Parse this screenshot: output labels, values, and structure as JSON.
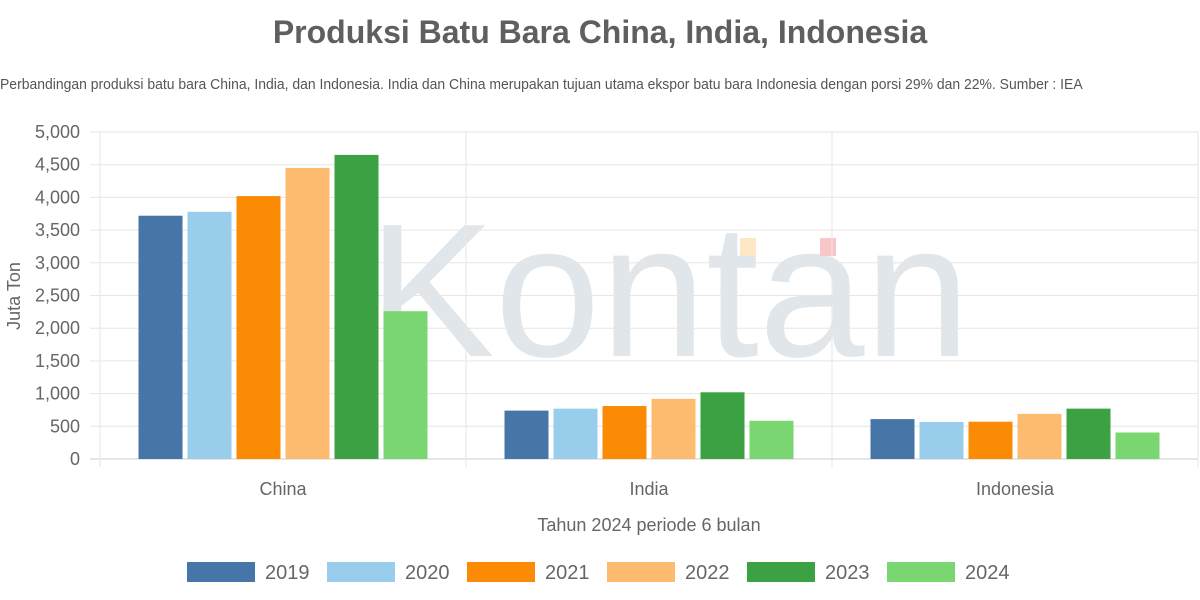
{
  "chart_data": {
    "type": "bar",
    "title": "Produksi Batu Bara China, India, Indonesia",
    "subtitle": "Perbandingan produksi batu bara China, India, dan Indonesia. India dan China merupakan tujuan utama ekspor batu bara Indonesia dengan porsi 29% dan 22%. Sumber : IEA",
    "xlabel": "Tahun 2024 periode 6 bulan",
    "ylabel": "Juta Ton",
    "ylim": [
      0,
      5000
    ],
    "yticks": [
      0,
      500,
      1000,
      1500,
      2000,
      2500,
      3000,
      3500,
      4000,
      4500,
      5000
    ],
    "ytick_labels": [
      "0",
      "500",
      "1,000",
      "1,500",
      "2,000",
      "2,500",
      "3,000",
      "3,500",
      "4,000",
      "4,500",
      "5,000"
    ],
    "grid": true,
    "legend_position": "bottom",
    "categories": [
      "China",
      "India",
      "Indonesia"
    ],
    "series": [
      {
        "name": "2019",
        "color": "#4676a8",
        "values": [
          3720,
          740,
          610
        ]
      },
      {
        "name": "2020",
        "color": "#98cdec",
        "values": [
          3780,
          770,
          565
        ]
      },
      {
        "name": "2021",
        "color": "#fb8a04",
        "values": [
          4020,
          810,
          570
        ]
      },
      {
        "name": "2022",
        "color": "#fdbb6f",
        "values": [
          4450,
          920,
          690
        ]
      },
      {
        "name": "2023",
        "color": "#3ba142",
        "values": [
          4650,
          1020,
          770
        ]
      },
      {
        "name": "2024",
        "color": "#7ad670",
        "values": [
          2260,
          585,
          405
        ]
      }
    ]
  },
  "watermark": {
    "text": "Kontan",
    "accent_colors": [
      "#fde7c4",
      "#f9c7c7"
    ]
  }
}
